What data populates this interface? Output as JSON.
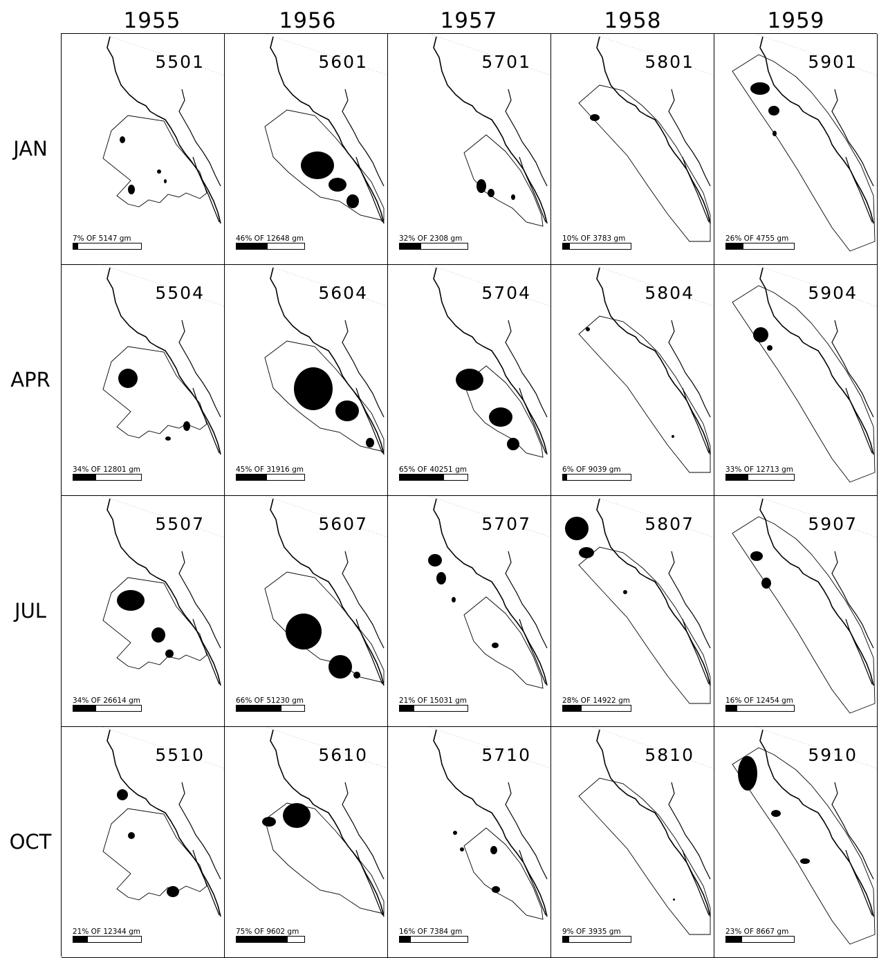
{
  "years": [
    "1955",
    "1956",
    "1957",
    "1958",
    "1959"
  ],
  "months": [
    "JAN",
    "APR",
    "JUL",
    "OCT"
  ],
  "panels": [
    [
      {
        "id": "5501",
        "pct_label": "7%",
        "total_label": "5147",
        "unit": "gm",
        "fraction": 0.07
      },
      {
        "id": "5601",
        "pct_label": "46%",
        "total_label": "12648",
        "unit": "gm",
        "fraction": 0.46
      },
      {
        "id": "5701",
        "pct_label": "32%",
        "total_label": "2308",
        "unit": "gm",
        "fraction": 0.32
      },
      {
        "id": "5801",
        "pct_label": "10%",
        "total_label": "3783",
        "unit": "gm",
        "fraction": 0.1
      },
      {
        "id": "5901",
        "pct_label": "26%",
        "total_label": "4755",
        "unit": "gm",
        "fraction": 0.26
      }
    ],
    [
      {
        "id": "5504",
        "pct_label": "34%",
        "total_label": "12801",
        "unit": "gm",
        "fraction": 0.34
      },
      {
        "id": "5604",
        "pct_label": "45%",
        "total_label": "31916",
        "unit": "gm",
        "fraction": 0.45
      },
      {
        "id": "5704",
        "pct_label": "65%",
        "total_label": "40251",
        "unit": "gm",
        "fraction": 0.65
      },
      {
        "id": "5804",
        "pct_label": "6%",
        "total_label": "9039",
        "unit": "gm",
        "fraction": 0.06
      },
      {
        "id": "5904",
        "pct_label": "33%",
        "total_label": "12713",
        "unit": "gm",
        "fraction": 0.33
      }
    ],
    [
      {
        "id": "5507",
        "pct_label": "34%",
        "total_label": "26614",
        "unit": "gm",
        "fraction": 0.34
      },
      {
        "id": "5607",
        "pct_label": "66%",
        "total_label": "51230",
        "unit": "gm",
        "fraction": 0.66
      },
      {
        "id": "5707",
        "pct_label": "21%",
        "total_label": "15031",
        "unit": "gm",
        "fraction": 0.21
      },
      {
        "id": "5807",
        "pct_label": "28%",
        "total_label": "14922",
        "unit": "gm",
        "fraction": 0.28
      },
      {
        "id": "5907",
        "pct_label": "16%",
        "total_label": "12454",
        "unit": "gm",
        "fraction": 0.16
      }
    ],
    [
      {
        "id": "5510",
        "pct_label": "21%",
        "total_label": "12344",
        "unit": "gm",
        "fraction": 0.21
      },
      {
        "id": "5610",
        "pct_label": "75%",
        "total_label": "9602",
        "unit": "gm",
        "fraction": 0.75
      },
      {
        "id": "5710",
        "pct_label": "16%",
        "total_label": "7384",
        "unit": "gm",
        "fraction": 0.16
      },
      {
        "id": "5810",
        "pct_label": "9%",
        "total_label": "3935",
        "unit": "gm",
        "fraction": 0.09
      },
      {
        "id": "5910",
        "pct_label": "23%",
        "total_label": "8667",
        "unit": "gm",
        "fraction": 0.23
      }
    ]
  ],
  "colors": {
    "ink": "#000000",
    "paper": "#ffffff"
  }
}
